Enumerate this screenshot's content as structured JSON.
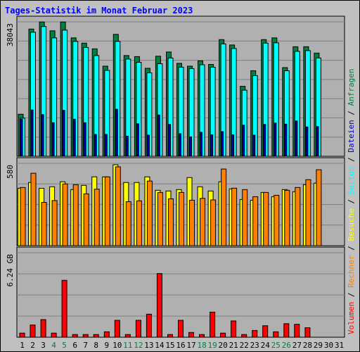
{
  "chart_data": {
    "title": "Tages-Statistik im Monat Februar 2023",
    "days": [
      "1",
      "2",
      "3",
      "4",
      "5",
      "6",
      "7",
      "8",
      "9",
      "10",
      "11",
      "12",
      "13",
      "14",
      "15",
      "16",
      "17",
      "18",
      "19",
      "20",
      "21",
      "22",
      "23",
      "24",
      "25",
      "26",
      "27",
      "28",
      "29",
      "30",
      "31"
    ],
    "weekend_days": [
      "4",
      "5",
      "11",
      "12",
      "18",
      "19",
      "25",
      "26"
    ],
    "colors": {
      "background": "#c0c0c0",
      "plot_bg": "#b0b0b0",
      "title": "#0000ff",
      "day_normal": "#000000",
      "day_weekend": "#008040",
      "anfragen": "#008040",
      "seiten": "#00ffff",
      "dateien": "#0000c0",
      "besuche": "#ffff00",
      "rechner": "#ff8000",
      "volumen": "#ff0000"
    },
    "panels": [
      {
        "type": "bar",
        "ytick": "38043",
        "ylim": [
          0,
          38043
        ],
        "series": [
          {
            "name": "Anfragen",
            "values": [
              11900,
              36000,
              38000,
              35500,
              38000,
              33500,
              32000,
              30400,
              25500,
              34500,
              28500,
              28200,
              24900,
              28300,
              29500,
              26300,
              25500,
              27000,
              26000,
              33000,
              31500,
              19800,
              24200,
              33000,
              33500,
              25100,
              31000,
              31000,
              29200,
              0,
              0
            ]
          },
          {
            "name": "Seiten",
            "values": [
              10800,
              35100,
              36700,
              33500,
              35700,
              32500,
              30800,
              28500,
              24300,
              32500,
              27500,
              26600,
              23600,
              26200,
              27800,
              25200,
              24800,
              25900,
              25200,
              31800,
              30500,
              18700,
              22800,
              32000,
              32100,
              24200,
              29700,
              29900,
              27800,
              0,
              0
            ]
          },
          {
            "name": "Dateien",
            "values": [
              10500,
              13100,
              11800,
              9500,
              13000,
              10500,
              9500,
              6200,
              6200,
              13300,
              5700,
              9200,
              6000,
              11700,
              9000,
              6400,
              5500,
              6800,
              6100,
              7000,
              6100,
              8800,
              6000,
              9000,
              9400,
              9100,
              10000,
              8300,
              8400,
              0,
              0
            ]
          }
        ]
      },
      {
        "type": "bar",
        "ytick": "580",
        "ylim": [
          0,
          580
        ],
        "series": [
          {
            "name": "Besuche",
            "values": [
              405,
              445,
              404,
              415,
              450,
              395,
              425,
              485,
              485,
              570,
              445,
              445,
              485,
              390,
              385,
              395,
              480,
              415,
              385,
              450,
              400,
              325,
              320,
              375,
              345,
              395,
              380,
              430,
              440,
              0,
              0
            ]
          },
          {
            "name": "Rechner",
            "values": [
              410,
              510,
              305,
              318,
              435,
              430,
              365,
              398,
              485,
              555,
              310,
              316,
              455,
              375,
              330,
              375,
              320,
              333,
              322,
              540,
              405,
              395,
              345,
              375,
              355,
              390,
              410,
              465,
              535,
              0,
              0
            ]
          }
        ]
      },
      {
        "type": "bar",
        "ytick": "6.24 GB",
        "ylim": [
          0,
          6.24
        ],
        "series": [
          {
            "name": "Volumen",
            "values": [
              0.3,
              0.9,
              1.3,
              0.3,
              4.2,
              0.2,
              0.2,
              0.2,
              0.4,
              1.25,
              0.2,
              1.25,
              1.7,
              4.7,
              0.2,
              1.25,
              0.35,
              0.2,
              1.85,
              0.3,
              1.2,
              0.2,
              0.5,
              0.85,
              0.4,
              1.0,
              0.95,
              0.7,
              0.0,
              0.0,
              0.0
            ]
          }
        ]
      }
    ],
    "legend": [
      "Anfragen",
      "Dateien",
      "Seiten",
      "Besuche",
      "Rechner",
      "Volumen"
    ],
    "legend_separator": " / "
  }
}
